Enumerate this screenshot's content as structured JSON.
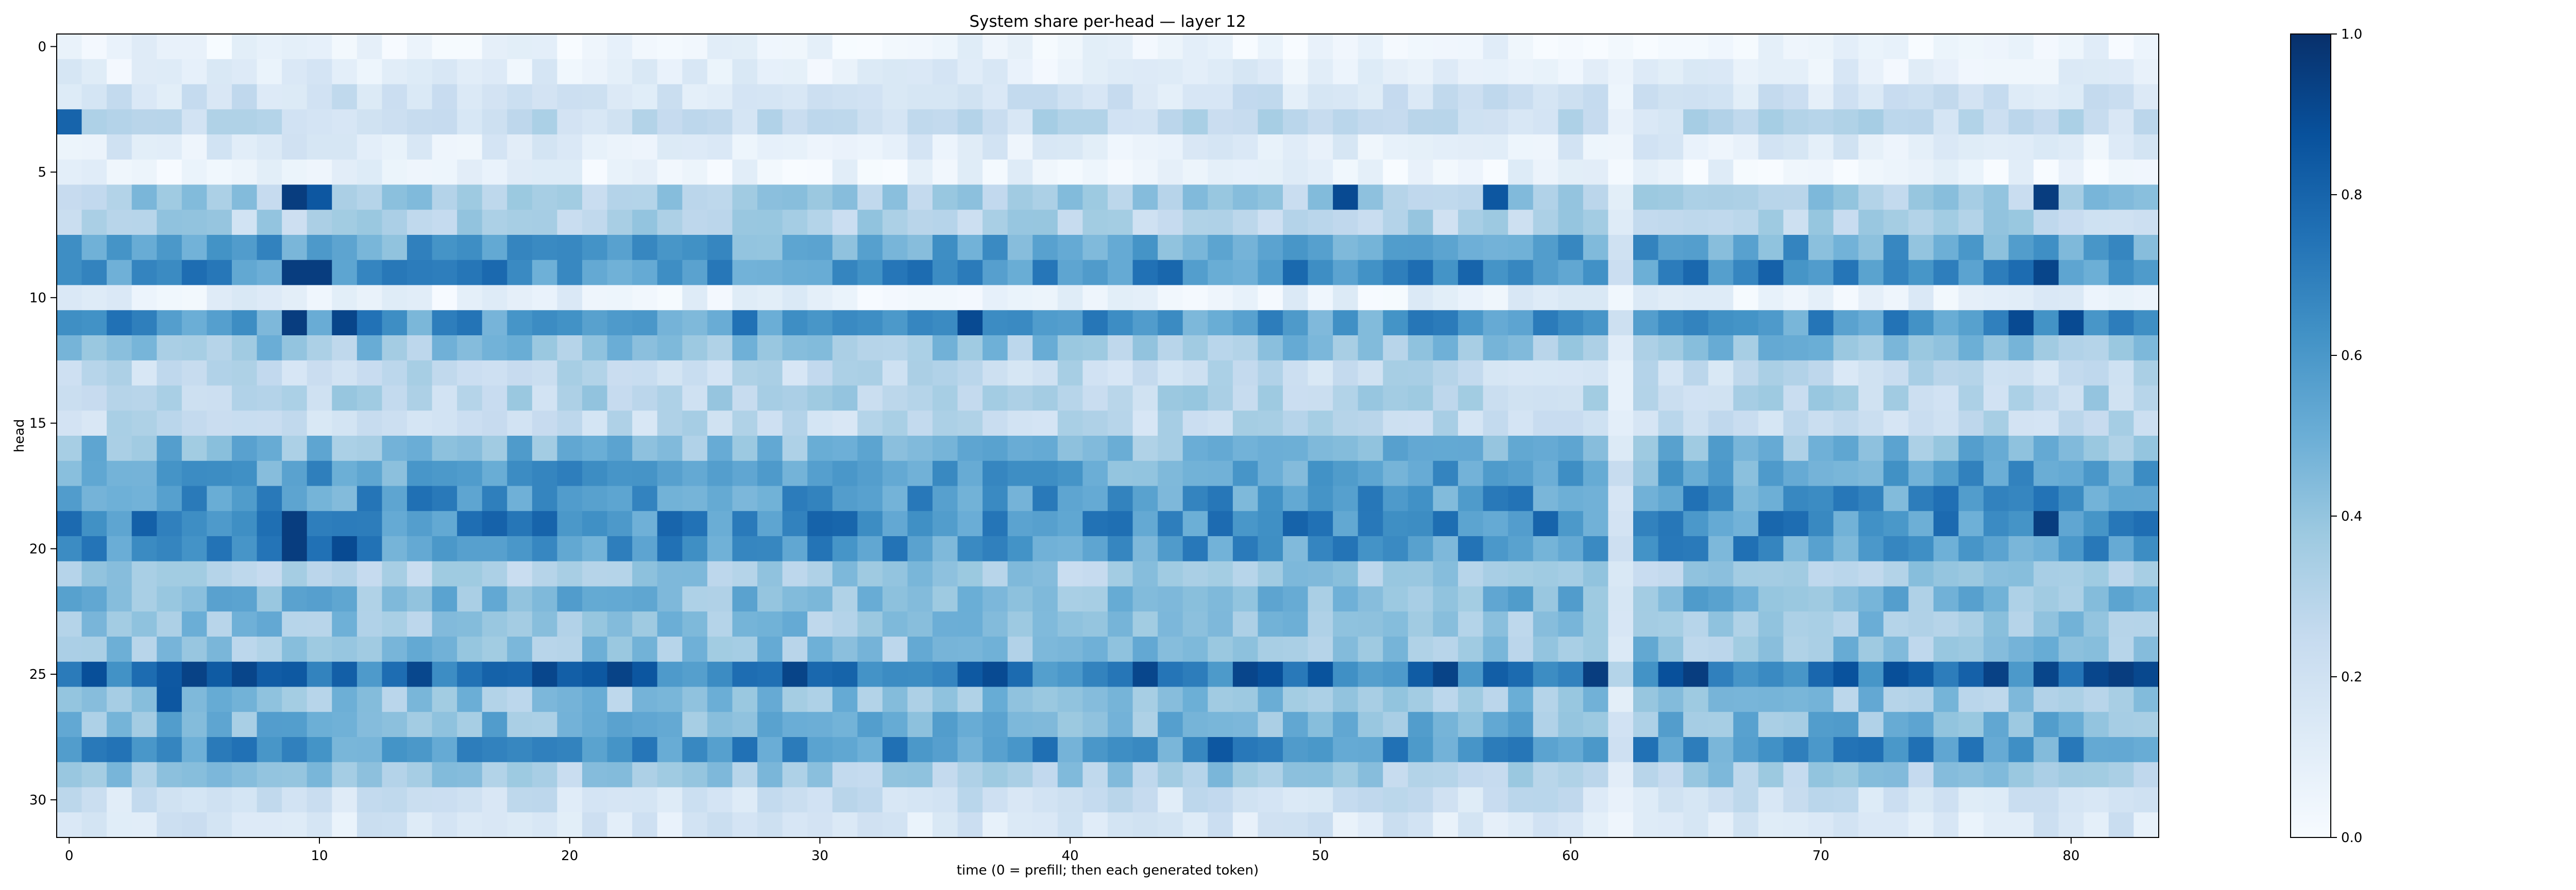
{
  "chart_data": {
    "type": "heatmap",
    "title": "System share per-head — layer 12",
    "xlabel": "time (0 = prefill; then each generated token)",
    "ylabel": "head",
    "n_rows": 32,
    "n_cols": 84,
    "x_ticks": [
      0,
      10,
      20,
      30,
      40,
      50,
      60,
      70,
      80
    ],
    "y_ticks": [
      0,
      5,
      10,
      15,
      20,
      25,
      30
    ],
    "colormap": "Blues",
    "colorbar": {
      "range": [
        0.0,
        1.0
      ],
      "ticks": [
        "0.0",
        "0.2",
        "0.4",
        "0.6",
        "0.8",
        "1.0"
      ]
    },
    "colors": {
      "low": "#f7fbff",
      "high": "#08306b"
    },
    "row_profile": [
      0.05,
      0.1,
      0.18,
      0.25,
      0.12,
      0.06,
      0.35,
      0.3,
      0.55,
      0.65,
      0.08,
      0.6,
      0.4,
      0.25,
      0.3,
      0.25,
      0.45,
      0.55,
      0.6,
      0.65,
      0.6,
      0.35,
      0.45,
      0.4,
      0.4,
      0.75,
      0.4,
      0.45,
      0.6,
      0.35,
      0.2,
      0.15
    ],
    "hotspots": [
      {
        "row": 3,
        "col": 0,
        "value": 0.8
      },
      {
        "row": 6,
        "col": 9,
        "value": 0.95
      },
      {
        "row": 6,
        "col": 10,
        "value": 0.85
      },
      {
        "row": 6,
        "col": 51,
        "value": 0.9
      },
      {
        "row": 6,
        "col": 57,
        "value": 0.85
      },
      {
        "row": 6,
        "col": 79,
        "value": 0.95
      },
      {
        "row": 9,
        "col": 9,
        "value": 0.95
      },
      {
        "row": 9,
        "col": 10,
        "value": 0.95
      },
      {
        "row": 9,
        "col": 79,
        "value": 0.92
      },
      {
        "row": 11,
        "col": 9,
        "value": 0.95
      },
      {
        "row": 11,
        "col": 11,
        "value": 0.92
      },
      {
        "row": 11,
        "col": 36,
        "value": 0.9
      },
      {
        "row": 11,
        "col": 78,
        "value": 0.9
      },
      {
        "row": 11,
        "col": 80,
        "value": 0.9
      },
      {
        "row": 19,
        "col": 9,
        "value": 0.95
      },
      {
        "row": 19,
        "col": 79,
        "value": 0.95
      },
      {
        "row": 20,
        "col": 9,
        "value": 0.95
      },
      {
        "row": 20,
        "col": 11,
        "value": 0.9
      },
      {
        "row": 25,
        "col": 7,
        "value": 0.92
      },
      {
        "row": 25,
        "col": 61,
        "value": 0.95
      },
      {
        "row": 25,
        "col": 65,
        "value": 0.95
      },
      {
        "row": 25,
        "col": 79,
        "value": 0.92
      },
      {
        "row": 25,
        "col": 82,
        "value": 0.95
      },
      {
        "row": 26,
        "col": 4,
        "value": 0.85
      },
      {
        "row": 28,
        "col": 46,
        "value": 0.85
      }
    ],
    "pale_columns": [
      62
    ]
  }
}
